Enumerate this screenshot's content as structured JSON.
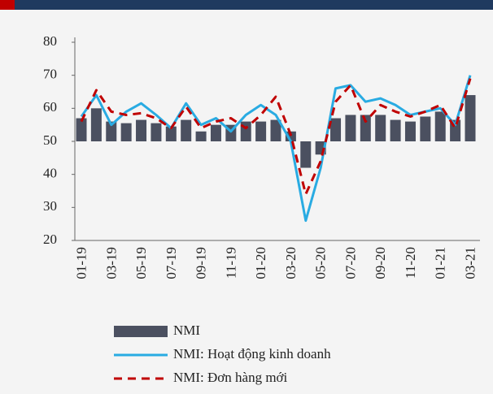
{
  "chart_data": {
    "type": "bar",
    "categories": [
      "01-19",
      null,
      "03-19",
      null,
      "05-19",
      null,
      "07-19",
      null,
      "09-19",
      null,
      "11-19",
      null,
      "01-20",
      null,
      "03-20",
      null,
      "05-20",
      null,
      "07-20",
      null,
      "09-20",
      null,
      "11-20",
      null,
      "01-21",
      null,
      "03-21"
    ],
    "series": [
      {
        "name": "NMI",
        "type": "bar",
        "color": "#4b5060",
        "values": [
          57,
          60,
          56,
          55.5,
          56.5,
          55.5,
          54.5,
          56.5,
          53,
          55,
          55,
          56,
          56,
          56.5,
          53,
          42,
          46,
          57,
          58,
          58,
          58,
          56.5,
          56,
          57.5,
          59,
          56.5,
          64
        ]
      },
      {
        "name": "NMI: Hoạt động kinh doanh",
        "type": "line",
        "color": "#29abe2",
        "values": [
          57.5,
          64,
          55,
          59,
          61.5,
          58,
          54,
          61.5,
          55,
          57,
          53,
          58,
          61,
          58,
          50,
          26,
          42,
          66,
          67,
          62,
          63,
          61,
          58,
          59,
          60,
          55,
          70
        ]
      },
      {
        "name": "NMI: Đơn hàng mới",
        "type": "line",
        "dashed": true,
        "color": "#c00000",
        "values": [
          56,
          65.5,
          59,
          58,
          58.5,
          57,
          54,
          60.5,
          54,
          56,
          57,
          54,
          58,
          63.5,
          52,
          34,
          44,
          62,
          67,
          56,
          61,
          59,
          57.5,
          59,
          61,
          54,
          69
        ]
      }
    ],
    "bar_baseline": 50,
    "ylim": [
      20,
      80
    ],
    "yticks": [
      20,
      30,
      40,
      50,
      60,
      70,
      80
    ],
    "grid": false
  }
}
